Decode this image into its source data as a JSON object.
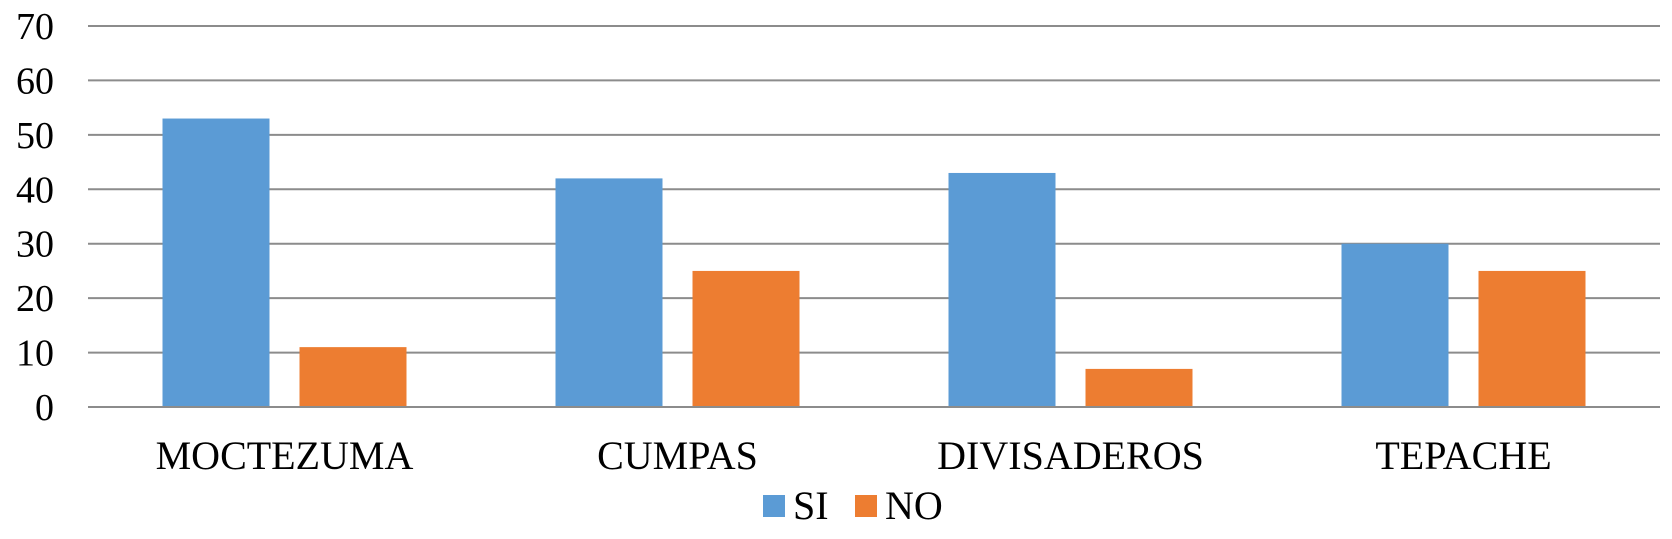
{
  "chart_data": {
    "type": "bar",
    "title": "",
    "xlabel": "",
    "ylabel": "",
    "categories": [
      "MOCTEZUMA",
      "CUMPAS",
      "DIVISADEROS",
      "TEPACHE"
    ],
    "series": [
      {
        "name": "SI",
        "color": "#5b9bd5",
        "values": [
          53,
          42,
          43,
          30
        ]
      },
      {
        "name": "NO",
        "color": "#ed7d31",
        "values": [
          11,
          25,
          7,
          25
        ]
      }
    ],
    "ylim": [
      0,
      70
    ],
    "yticks": [
      0,
      10,
      20,
      30,
      40,
      50,
      60,
      70
    ],
    "grid": true,
    "legend": "bottom-center"
  }
}
